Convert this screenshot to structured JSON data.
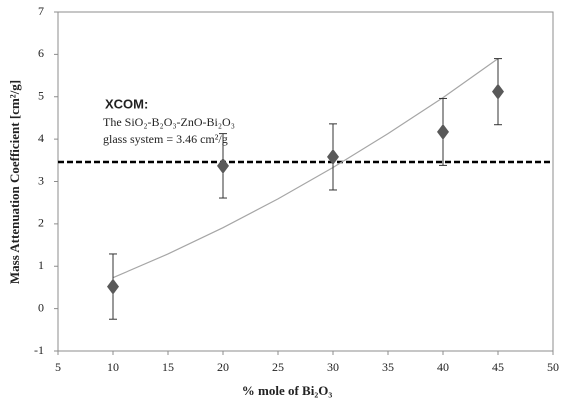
{
  "chart_data": {
    "type": "scatter",
    "x_label": "% mole of Bi₂O₃",
    "y_label": "Mass Attenuation Coefficient [cm²/g]",
    "annotation_title": "XCOM:",
    "annotation_lines": [
      "The SiO₂-B₂O₃-ZnO-Bi₂O₃",
      "glass system = 3.46 cm²/g"
    ],
    "series": [
      {
        "x": [
          10,
          20,
          30,
          40,
          45
        ],
        "values": [
          0.52,
          3.37,
          3.58,
          4.17,
          5.12
        ],
        "errors": [
          0.77,
          0.76,
          0.78,
          0.79,
          0.78
        ],
        "color": "#595959"
      }
    ],
    "trendline": {
      "x": [
        10,
        15,
        20,
        25,
        30,
        35,
        40,
        45
      ],
      "values": [
        0.73,
        1.29,
        1.91,
        2.59,
        3.33,
        4.13,
        4.98,
        5.9
      ],
      "color": "#a6a6a6"
    },
    "reference_line": {
      "value": 3.46,
      "color": "#000000"
    },
    "xlim": [
      5,
      50
    ],
    "xticks": [
      5,
      10,
      15,
      20,
      25,
      30,
      35,
      40,
      45,
      50
    ],
    "ylim": [
      -1,
      7
    ],
    "yticks": [
      -1,
      0,
      1,
      2,
      3,
      4,
      5,
      6,
      7
    ]
  }
}
